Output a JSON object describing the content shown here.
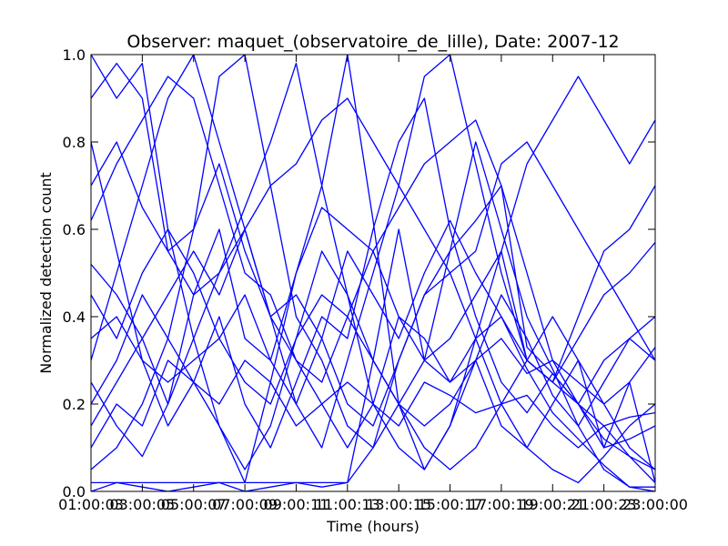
{
  "chart_data": {
    "type": "line",
    "title": "Observer: maquet_(observatoire_de_lille), Date: 2007-12",
    "xlabel": "Time (hours)",
    "ylabel": "Normalized detection count",
    "x_tick_labels": [
      "01:00:03",
      "03:00:05",
      "05:00:07",
      "07:00:09",
      "09:00:11",
      "11:00:13",
      "13:00:15",
      "15:00:17",
      "17:00:19",
      "19:00:21",
      "21:00:23",
      "23:00:00"
    ],
    "x_hours": [
      1,
      3,
      5,
      7,
      9,
      11,
      13,
      15,
      17,
      19,
      21,
      23
    ],
    "xlim": [
      1,
      23
    ],
    "ylim": [
      0.0,
      1.0
    ],
    "y_tick_labels": [
      "0.0",
      "0.2",
      "0.4",
      "0.6",
      "0.8",
      "1.0"
    ],
    "y_ticks": [
      0.0,
      0.2,
      0.4,
      0.6,
      0.8,
      1.0
    ],
    "grid": false,
    "line_color": "#0000ff",
    "series": [
      {
        "x": [
          1,
          2,
          3,
          4,
          5,
          6,
          7,
          8,
          9,
          10,
          11,
          12,
          13,
          14,
          15,
          16,
          17,
          18,
          19,
          20,
          21,
          22,
          23
        ],
        "values": [
          0.02,
          0.02,
          0.02,
          0.02,
          0.02,
          0.02,
          0.02,
          0.02,
          0.02,
          0.02,
          0.02,
          0.1,
          0.3,
          0.45,
          0.55,
          0.62,
          0.7,
          0.33,
          0.27,
          0.2,
          0.15,
          0.08,
          0.02
        ]
      },
      {
        "x": [
          1,
          2,
          3,
          4,
          5,
          6,
          7,
          8,
          9,
          10,
          11,
          12,
          13,
          14,
          15,
          16,
          17,
          18,
          19,
          20,
          21,
          22,
          23
        ],
        "values": [
          0.0,
          0.02,
          0.01,
          0.0,
          0.01,
          0.02,
          0.0,
          0.01,
          0.02,
          0.01,
          0.02,
          0.3,
          0.6,
          0.3,
          0.25,
          0.35,
          0.4,
          0.28,
          0.18,
          0.12,
          0.06,
          0.01,
          0.0
        ]
      },
      {
        "x": [
          1,
          2,
          3,
          4,
          5,
          6,
          7,
          8,
          9,
          10,
          11,
          12,
          13,
          14,
          15,
          16,
          17,
          18,
          19,
          20,
          21,
          22,
          23
        ],
        "values": [
          1.0,
          0.9,
          0.98,
          0.6,
          0.35,
          0.15,
          0.02,
          0.25,
          0.5,
          0.7,
          1.0,
          0.62,
          0.2,
          0.05,
          0.15,
          0.35,
          0.2,
          0.1,
          0.2,
          0.3,
          0.1,
          0.25,
          0.02
        ]
      },
      {
        "x": [
          1,
          2,
          3,
          4,
          5,
          6,
          7,
          8,
          9,
          10,
          11,
          12,
          13,
          14,
          15,
          16,
          17,
          18,
          19,
          20,
          21,
          22,
          23
        ],
        "values": [
          0.3,
          0.5,
          0.7,
          0.9,
          1.0,
          0.8,
          0.6,
          0.4,
          0.2,
          0.1,
          0.3,
          0.5,
          0.7,
          0.95,
          1.0,
          0.75,
          0.5,
          0.3,
          0.25,
          0.4,
          0.55,
          0.6,
          0.7
        ]
      },
      {
        "x": [
          1,
          2,
          3,
          4,
          5,
          6,
          7,
          8,
          9,
          10,
          11,
          12,
          13,
          14,
          15,
          16,
          17,
          18,
          19,
          20,
          21,
          22,
          23
        ],
        "values": [
          0.15,
          0.25,
          0.35,
          0.2,
          0.45,
          0.6,
          0.35,
          0.3,
          0.5,
          0.65,
          0.6,
          0.55,
          0.4,
          0.3,
          0.35,
          0.45,
          0.55,
          0.3,
          0.25,
          0.2,
          0.3,
          0.35,
          0.4
        ]
      },
      {
        "x": [
          1,
          2,
          3,
          4,
          5,
          6,
          7,
          8,
          9,
          10,
          11,
          12,
          13,
          14,
          15,
          16,
          17,
          18,
          19,
          20,
          21,
          22,
          23
        ],
        "values": [
          0.8,
          0.55,
          0.3,
          0.15,
          0.25,
          0.4,
          0.2,
          0.1,
          0.25,
          0.4,
          0.35,
          0.6,
          0.8,
          0.9,
          0.6,
          0.4,
          0.25,
          0.18,
          0.27,
          0.2,
          0.12,
          0.08,
          0.05
        ]
      },
      {
        "x": [
          1,
          2,
          3,
          4,
          5,
          6,
          7,
          8,
          9,
          10,
          11,
          12,
          13,
          14,
          15,
          16,
          17,
          18,
          19,
          20,
          21,
          22,
          23
        ],
        "values": [
          0.05,
          0.1,
          0.2,
          0.35,
          0.6,
          0.95,
          1.0,
          0.7,
          0.4,
          0.3,
          0.15,
          0.1,
          0.2,
          0.3,
          0.55,
          0.8,
          0.6,
          0.4,
          0.28,
          0.15,
          0.05,
          0.01,
          0.01
        ]
      },
      {
        "x": [
          1,
          2,
          3,
          4,
          5,
          6,
          7,
          8,
          9,
          10,
          11,
          12,
          13,
          14,
          15,
          16,
          17,
          18,
          19,
          20,
          21,
          22,
          23
        ],
        "values": [
          0.45,
          0.35,
          0.5,
          0.6,
          0.5,
          0.35,
          0.45,
          0.3,
          0.2,
          0.35,
          0.55,
          0.45,
          0.35,
          0.5,
          0.62,
          0.5,
          0.4,
          0.3,
          0.25,
          0.35,
          0.45,
          0.5,
          0.57
        ]
      },
      {
        "x": [
          1,
          2,
          3,
          4,
          5,
          6,
          7,
          8,
          9,
          10,
          11,
          12,
          13,
          14,
          15,
          16,
          17,
          18,
          19,
          20,
          21,
          22,
          23
        ],
        "values": [
          0.25,
          0.15,
          0.08,
          0.2,
          0.35,
          0.5,
          0.65,
          0.8,
          0.98,
          0.7,
          0.45,
          0.2,
          0.1,
          0.05,
          0.15,
          0.3,
          0.45,
          0.35,
          0.22,
          0.15,
          0.25,
          0.35,
          0.3
        ]
      },
      {
        "x": [
          1,
          2,
          3,
          4,
          5,
          6,
          7,
          8,
          9,
          10,
          11,
          12,
          13,
          14,
          15,
          16,
          17,
          18,
          19,
          20,
          21,
          22,
          23
        ],
        "values": [
          0.62,
          0.75,
          0.85,
          0.95,
          0.9,
          0.7,
          0.5,
          0.45,
          0.3,
          0.25,
          0.4,
          0.55,
          0.65,
          0.75,
          0.8,
          0.85,
          0.7,
          0.5,
          0.3,
          0.2,
          0.1,
          0.12,
          0.15
        ]
      },
      {
        "x": [
          1,
          2,
          3,
          4,
          5,
          6,
          7,
          8,
          9,
          10,
          11,
          12,
          13,
          14,
          15,
          16,
          17,
          18,
          19,
          20,
          21,
          22,
          23
        ],
        "values": [
          0.35,
          0.4,
          0.3,
          0.25,
          0.3,
          0.35,
          0.25,
          0.2,
          0.35,
          0.45,
          0.4,
          0.3,
          0.2,
          0.15,
          0.2,
          0.3,
          0.35,
          0.27,
          0.3,
          0.25,
          0.2,
          0.25,
          0.33
        ]
      },
      {
        "x": [
          1,
          2,
          3,
          4,
          5,
          6,
          7,
          8,
          9,
          10,
          11,
          12,
          13,
          14,
          15,
          16,
          17,
          18,
          19,
          20,
          21,
          22,
          23
        ],
        "values": [
          0.9,
          0.98,
          0.9,
          0.55,
          0.6,
          0.75,
          0.55,
          0.4,
          0.45,
          0.35,
          0.2,
          0.15,
          0.3,
          0.45,
          0.5,
          0.35,
          0.55,
          0.75,
          0.85,
          0.95,
          0.85,
          0.75,
          0.85
        ]
      },
      {
        "x": [
          1,
          2,
          3,
          4,
          5,
          6,
          7,
          8,
          9,
          10,
          11,
          12,
          13,
          14,
          15,
          16,
          17,
          18,
          19,
          20,
          21,
          22,
          23
        ],
        "values": [
          0.1,
          0.2,
          0.15,
          0.3,
          0.25,
          0.2,
          0.3,
          0.25,
          0.15,
          0.2,
          0.25,
          0.2,
          0.15,
          0.25,
          0.22,
          0.18,
          0.2,
          0.22,
          0.15,
          0.1,
          0.15,
          0.17,
          0.18
        ]
      },
      {
        "x": [
          1,
          2,
          3,
          4,
          5,
          6,
          7,
          8,
          9,
          10,
          11,
          12,
          13,
          14,
          15,
          16,
          17,
          18,
          19,
          20,
          21,
          22,
          23
        ],
        "values": [
          0.52,
          0.45,
          0.35,
          0.45,
          0.55,
          0.45,
          0.6,
          0.4,
          0.3,
          0.2,
          0.1,
          0.2,
          0.4,
          0.35,
          0.25,
          0.3,
          0.15,
          0.1,
          0.05,
          0.02,
          0.08,
          0.15,
          0.2
        ]
      },
      {
        "x": [
          1,
          2,
          3,
          4,
          5,
          6,
          7,
          8,
          9,
          10,
          11,
          12,
          13,
          14,
          15,
          16,
          17,
          18,
          19,
          20,
          21,
          22,
          23
        ],
        "values": [
          0.7,
          0.8,
          0.65,
          0.55,
          0.45,
          0.5,
          0.6,
          0.7,
          0.75,
          0.85,
          0.9,
          0.8,
          0.7,
          0.6,
          0.5,
          0.55,
          0.75,
          0.8,
          0.7,
          0.6,
          0.5,
          0.4,
          0.3
        ]
      },
      {
        "x": [
          1,
          2,
          3,
          4,
          5,
          6,
          7,
          8,
          9,
          10,
          11,
          12,
          13,
          14,
          15,
          16,
          17,
          18,
          19,
          20,
          21,
          22,
          23
        ],
        "values": [
          0.2,
          0.3,
          0.45,
          0.35,
          0.25,
          0.15,
          0.05,
          0.15,
          0.35,
          0.55,
          0.45,
          0.3,
          0.2,
          0.1,
          0.05,
          0.1,
          0.2,
          0.3,
          0.4,
          0.3,
          0.2,
          0.1,
          0.05
        ]
      }
    ]
  }
}
